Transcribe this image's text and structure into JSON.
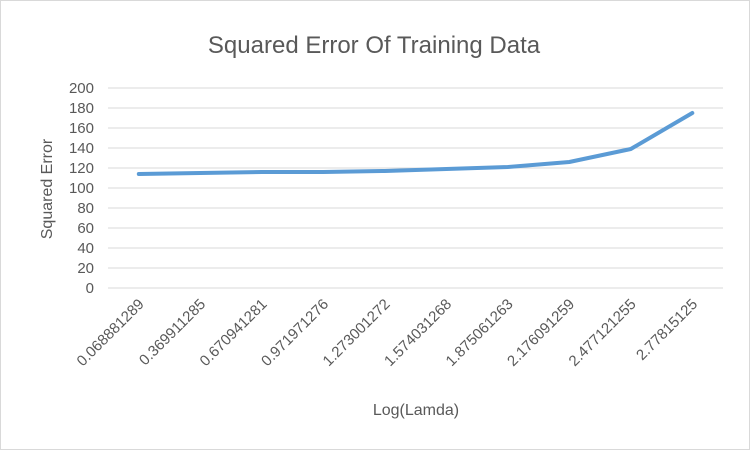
{
  "chart_data": {
    "type": "line",
    "title": "Squared Error Of Training Data",
    "xlabel": "Log(Lamda)",
    "ylabel": "Squared Error",
    "categories": [
      "0.068881289",
      "0.369911285",
      "0.670941281",
      "0.971971276",
      "1.273001272",
      "1.574031268",
      "1.875061263",
      "2.176091259",
      "2.477121255",
      "2.77815125"
    ],
    "series": [
      {
        "values": [
          114,
          115,
          116,
          116,
          117,
          119,
          121,
          126,
          139,
          175
        ]
      }
    ],
    "ylim": [
      0,
      200
    ],
    "yticks": [
      0,
      20,
      40,
      60,
      80,
      100,
      120,
      140,
      160,
      180,
      200
    ],
    "grid": true,
    "legend": "none",
    "colors": {
      "series": "#5b9bd5",
      "grid": "#d9d9d9",
      "text": "#595959"
    }
  }
}
